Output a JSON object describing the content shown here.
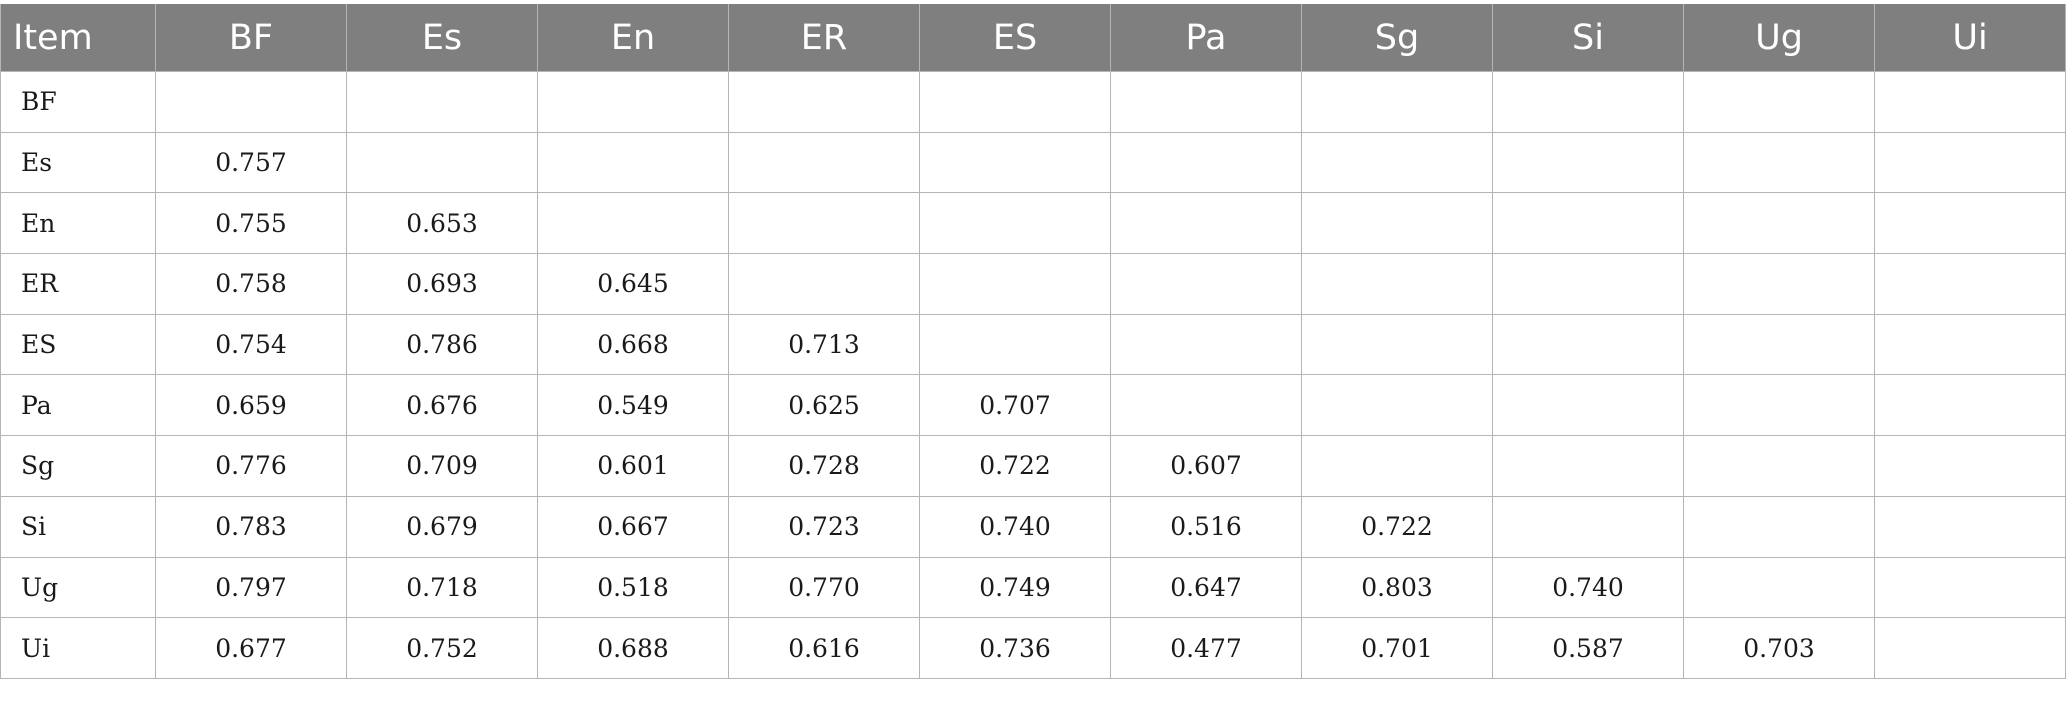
{
  "table": {
    "header": [
      "Item",
      "BF",
      "Es",
      "En",
      "ER",
      "ES",
      "Pa",
      "Sg",
      "Si",
      "Ug",
      "Ui"
    ],
    "rows": [
      {
        "label": "BF",
        "values": [
          "",
          "",
          "",
          "",
          "",
          "",
          "",
          "",
          "",
          ""
        ]
      },
      {
        "label": "Es",
        "values": [
          "0.757",
          "",
          "",
          "",
          "",
          "",
          "",
          "",
          "",
          ""
        ]
      },
      {
        "label": "En",
        "values": [
          "0.755",
          "0.653",
          "",
          "",
          "",
          "",
          "",
          "",
          "",
          ""
        ]
      },
      {
        "label": "ER",
        "values": [
          "0.758",
          "0.693",
          "0.645",
          "",
          "",
          "",
          "",
          "",
          "",
          ""
        ]
      },
      {
        "label": "ES",
        "values": [
          "0.754",
          "0.786",
          "0.668",
          "0.713",
          "",
          "",
          "",
          "",
          "",
          ""
        ]
      },
      {
        "label": "Pa",
        "values": [
          "0.659",
          "0.676",
          "0.549",
          "0.625",
          "0.707",
          "",
          "",
          "",
          "",
          ""
        ]
      },
      {
        "label": "Sg",
        "values": [
          "0.776",
          "0.709",
          "0.601",
          "0.728",
          "0.722",
          "0.607",
          "",
          "",
          "",
          ""
        ]
      },
      {
        "label": "Si",
        "values": [
          "0.783",
          "0.679",
          "0.667",
          "0.723",
          "0.740",
          "0.516",
          "0.722",
          "",
          "",
          ""
        ]
      },
      {
        "label": "Ug",
        "values": [
          "0.797",
          "0.718",
          "0.518",
          "0.770",
          "0.749",
          "0.647",
          "0.803",
          "0.740",
          "",
          ""
        ]
      },
      {
        "label": "Ui",
        "values": [
          "0.677",
          "0.752",
          "0.688",
          "0.616",
          "0.736",
          "0.477",
          "0.701",
          "0.587",
          "0.703",
          ""
        ]
      }
    ]
  },
  "colors": {
    "header_bg": "#7f7f7f",
    "header_text": "#ffffff",
    "grid_line": "#b5b5b5",
    "body_text": "#1a1a1a"
  }
}
